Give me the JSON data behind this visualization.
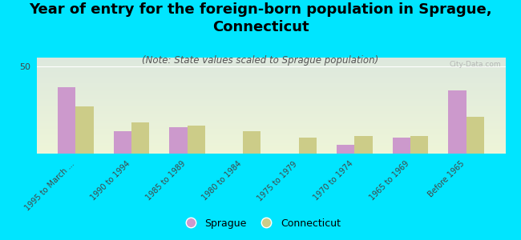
{
  "title": "Year of entry for the foreign-born population in Sprague,\nConnecticut",
  "subtitle": "(Note: State values scaled to Sprague population)",
  "categories": [
    "1995 to March ...",
    "1990 to 1994",
    "1985 to 1989",
    "1980 to 1984",
    "1975 to 1979",
    "1970 to 1974",
    "1965 to 1969",
    "Before 1965"
  ],
  "sprague_values": [
    38,
    13,
    15,
    0,
    0,
    5,
    9,
    36
  ],
  "connecticut_values": [
    27,
    18,
    16,
    13,
    9,
    10,
    10,
    21
  ],
  "sprague_color": "#cc99cc",
  "connecticut_color": "#cccc88",
  "bg_color": "#00e5ff",
  "plot_bg_top": "#dde8dd",
  "plot_bg_bottom": "#eef5d8",
  "ylim": [
    0,
    55
  ],
  "ytick_val": 50,
  "bar_width": 0.32,
  "title_fontsize": 13,
  "subtitle_fontsize": 8.5,
  "watermark": "City-Data.com"
}
